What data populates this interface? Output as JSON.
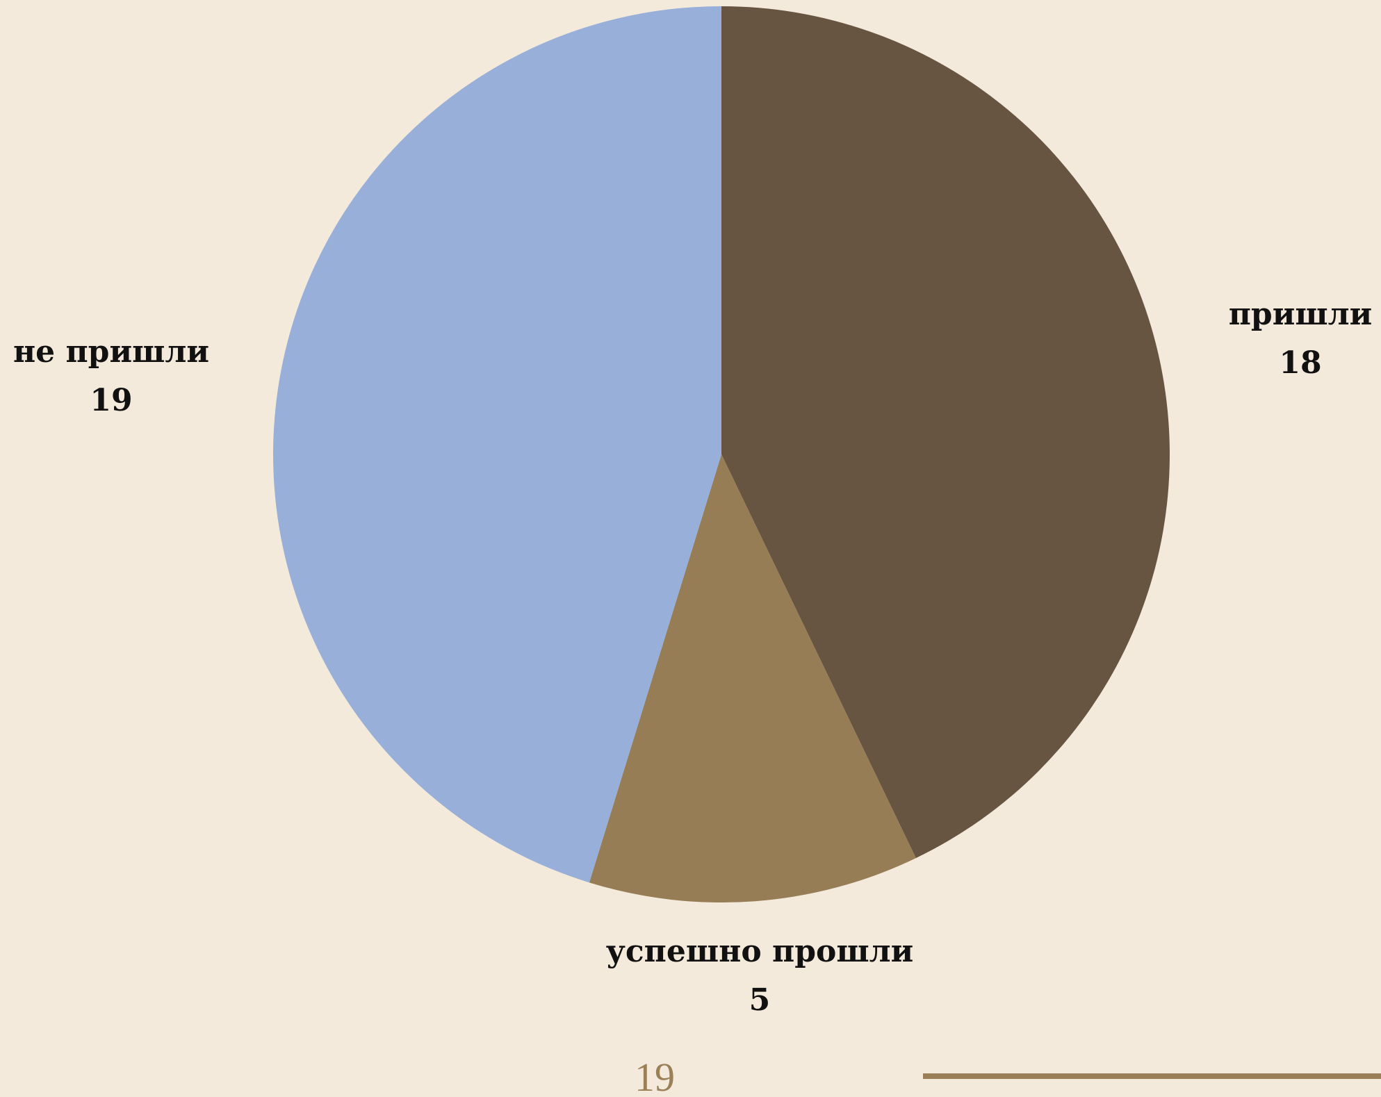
{
  "chart_data": {
    "type": "pie",
    "title": "",
    "start_angle_deg": 0,
    "direction": "clockwise",
    "slices": [
      {
        "label": "пришли",
        "value": 18,
        "color": "#675542"
      },
      {
        "label": "успешно прошли",
        "value": 5,
        "color": "#967d56"
      },
      {
        "label": "не пришли",
        "value": 19,
        "color": "#97afd9"
      }
    ]
  },
  "footer": {
    "page_number": "19",
    "accent_color": "#9a7f57"
  }
}
